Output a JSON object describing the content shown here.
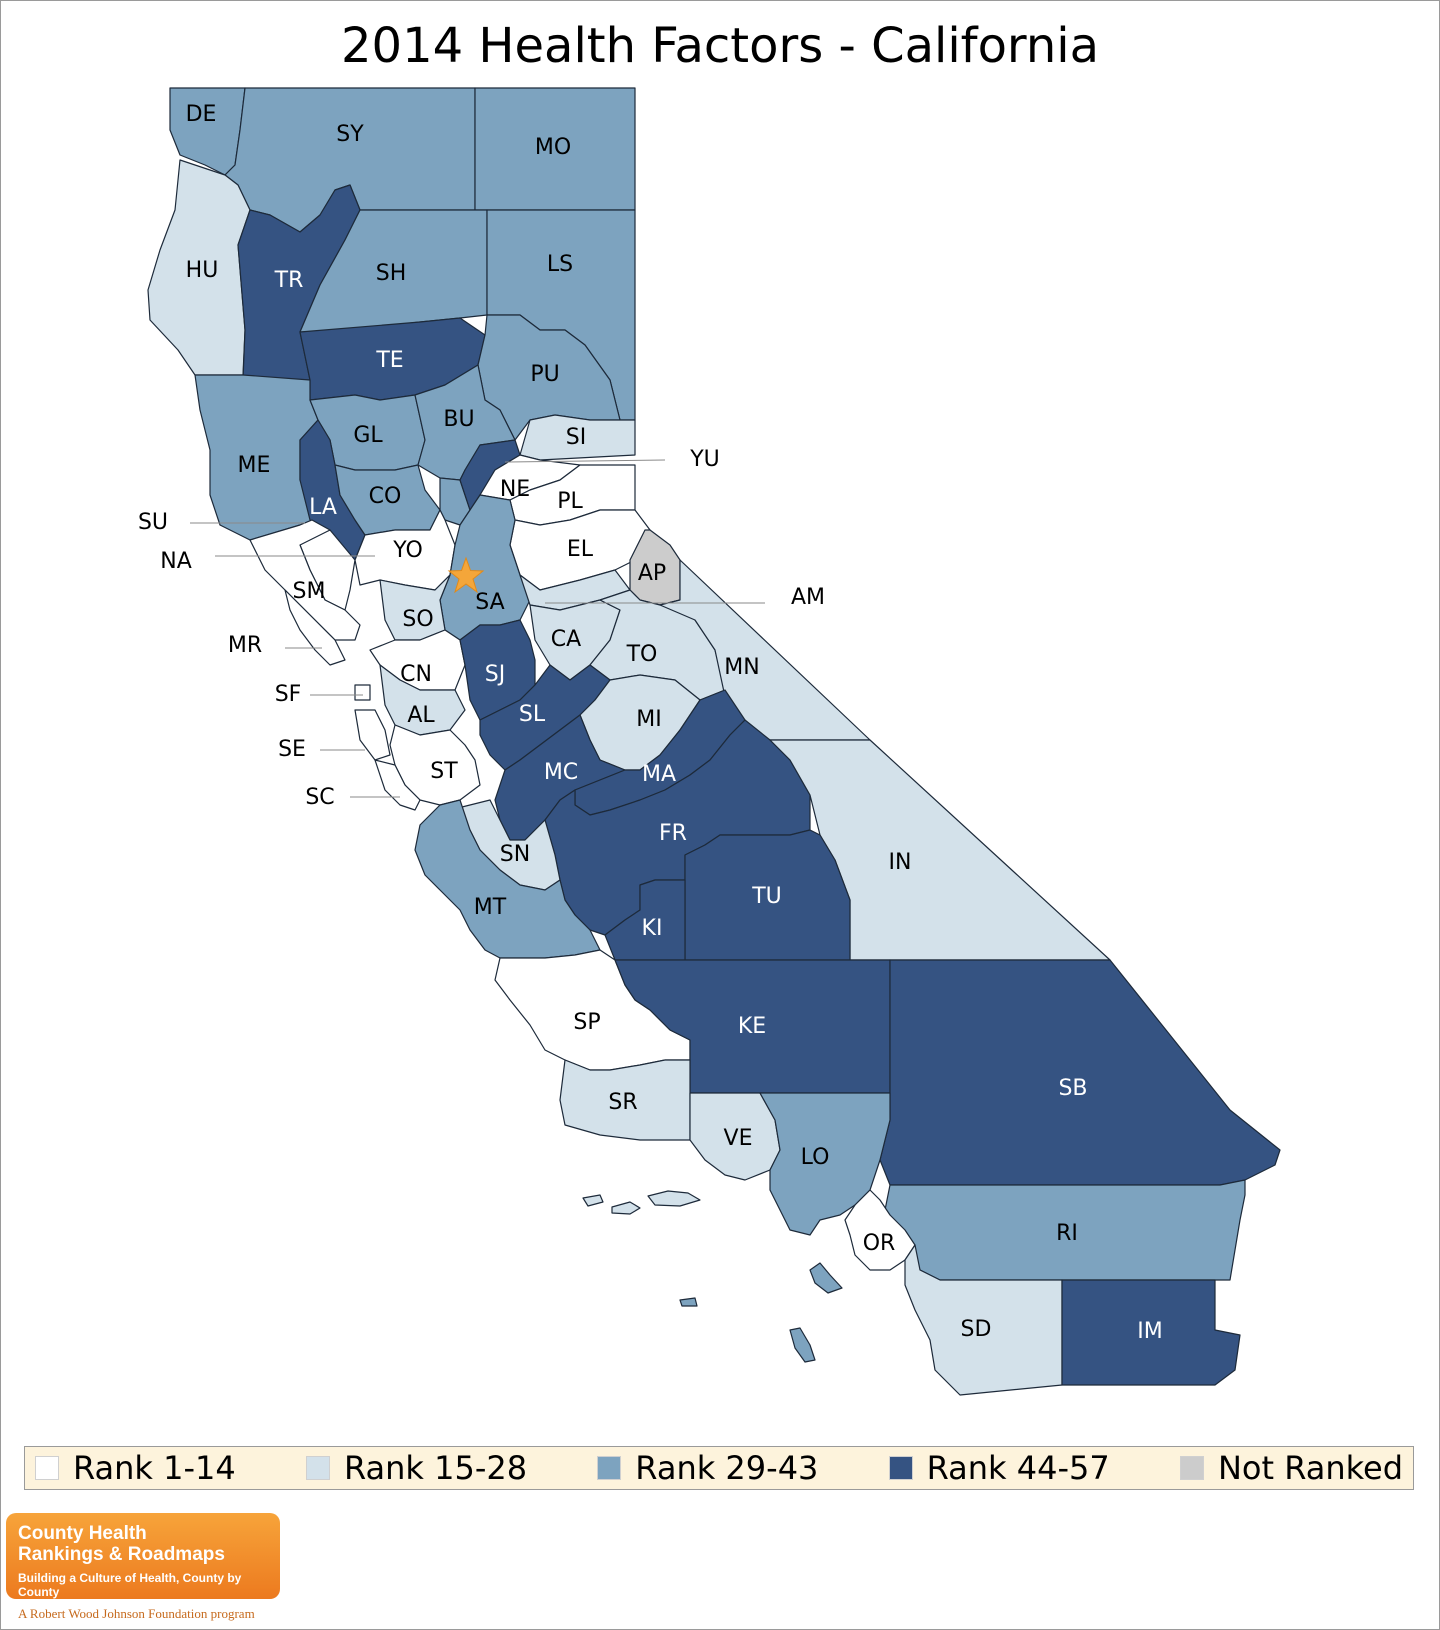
{
  "title": "2014 Health Factors - California",
  "colors": {
    "rank_1_14": "#ffffff",
    "rank_15_28": "#d3e1ea",
    "rank_29_43": "#7da3bf",
    "rank_44_57": "#355382",
    "not_ranked": "#cccccc",
    "star": "#f4a63a"
  },
  "legend": [
    {
      "key": "rank_1_14",
      "label": "Rank 1-14"
    },
    {
      "key": "rank_15_28",
      "label": "Rank 15-28"
    },
    {
      "key": "rank_29_43",
      "label": "Rank 29-43"
    },
    {
      "key": "rank_44_57",
      "label": "Rank 44-57"
    },
    {
      "key": "not_ranked",
      "label": "Not Ranked"
    }
  ],
  "counties": [
    {
      "code": "DE",
      "class": "rank_29_43"
    },
    {
      "code": "SY",
      "class": "rank_29_43"
    },
    {
      "code": "MO",
      "class": "rank_29_43"
    },
    {
      "code": "HU",
      "class": "rank_15_28"
    },
    {
      "code": "TR",
      "class": "rank_44_57"
    },
    {
      "code": "SH",
      "class": "rank_29_43"
    },
    {
      "code": "LS",
      "class": "rank_29_43"
    },
    {
      "code": "TE",
      "class": "rank_44_57"
    },
    {
      "code": "PU",
      "class": "rank_29_43"
    },
    {
      "code": "ME",
      "class": "rank_29_43"
    },
    {
      "code": "GL",
      "class": "rank_29_43"
    },
    {
      "code": "BU",
      "class": "rank_29_43"
    },
    {
      "code": "SI",
      "class": "rank_15_28"
    },
    {
      "code": "LA",
      "class": "rank_44_57"
    },
    {
      "code": "CO",
      "class": "rank_29_43"
    },
    {
      "code": "SU",
      "class": "rank_29_43"
    },
    {
      "code": "YU",
      "class": "rank_44_57"
    },
    {
      "code": "NE",
      "class": "rank_1_14"
    },
    {
      "code": "PL",
      "class": "rank_1_14"
    },
    {
      "code": "EL",
      "class": "rank_1_14"
    },
    {
      "code": "NA",
      "class": "rank_1_14"
    },
    {
      "code": "YO",
      "class": "rank_1_14"
    },
    {
      "code": "SA",
      "class": "rank_29_43"
    },
    {
      "code": "AP",
      "class": "not_ranked"
    },
    {
      "code": "AM",
      "class": "rank_15_28"
    },
    {
      "code": "SM",
      "class": "rank_1_14"
    },
    {
      "code": "SO",
      "class": "rank_15_28"
    },
    {
      "code": "CA",
      "class": "rank_15_28"
    },
    {
      "code": "TO",
      "class": "rank_15_28"
    },
    {
      "code": "MN",
      "class": "rank_15_28"
    },
    {
      "code": "MR",
      "class": "rank_1_14"
    },
    {
      "code": "CN",
      "class": "rank_1_14"
    },
    {
      "code": "SJ",
      "class": "rank_44_57"
    },
    {
      "code": "SF",
      "class": "rank_1_14"
    },
    {
      "code": "AL",
      "class": "rank_15_28"
    },
    {
      "code": "SL",
      "class": "rank_44_57"
    },
    {
      "code": "MI",
      "class": "rank_15_28"
    },
    {
      "code": "SE",
      "class": "rank_1_14"
    },
    {
      "code": "ST",
      "class": "rank_1_14"
    },
    {
      "code": "MC",
      "class": "rank_44_57"
    },
    {
      "code": "MA",
      "class": "rank_44_57"
    },
    {
      "code": "SC",
      "class": "rank_1_14"
    },
    {
      "code": "FR",
      "class": "rank_44_57"
    },
    {
      "code": "IN",
      "class": "rank_15_28"
    },
    {
      "code": "SN",
      "class": "rank_15_28"
    },
    {
      "code": "MT",
      "class": "rank_29_43"
    },
    {
      "code": "TU",
      "class": "rank_44_57"
    },
    {
      "code": "KI",
      "class": "rank_44_57"
    },
    {
      "code": "SP",
      "class": "rank_1_14"
    },
    {
      "code": "KE",
      "class": "rank_44_57"
    },
    {
      "code": "SB",
      "class": "rank_44_57"
    },
    {
      "code": "SR",
      "class": "rank_15_28"
    },
    {
      "code": "VE",
      "class": "rank_15_28"
    },
    {
      "code": "LO",
      "class": "rank_29_43"
    },
    {
      "code": "RI",
      "class": "rank_29_43"
    },
    {
      "code": "OR",
      "class": "rank_1_14"
    },
    {
      "code": "SD",
      "class": "rank_15_28"
    },
    {
      "code": "IM",
      "class": "rank_44_57"
    }
  ],
  "brand": {
    "name_line1": "County Health",
    "name_line2": "Rankings & Roadmaps",
    "tagline": "Building a Culture of Health, County by County",
    "foundation": "A Robert Wood Johnson Foundation program"
  }
}
